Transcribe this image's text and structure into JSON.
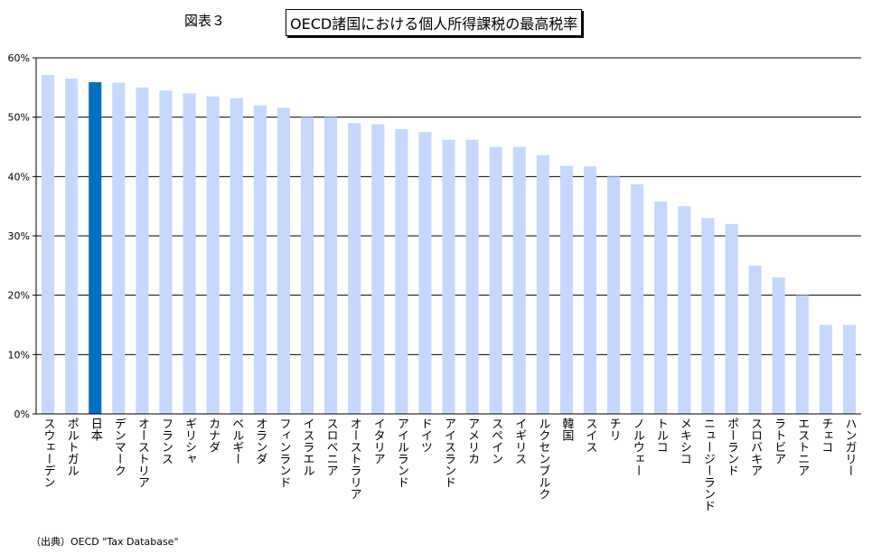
{
  "figure_label": "図表３",
  "source_note": "（出典）OECD \"Tax Database\"",
  "chart_data": {
    "type": "bar",
    "title": "OECD諸国における個人所得課税の最高税率",
    "xlabel": "",
    "ylabel": "",
    "ylim": [
      0,
      60
    ],
    "yticks": [
      "0%",
      "10%",
      "20%",
      "30%",
      "40%",
      "50%",
      "60%"
    ],
    "grid": true,
    "bar_color": "#c6d8ff",
    "highlight_color": "#0070c0",
    "highlight_category": "日本",
    "categories": [
      "スウェーデン",
      "ポルトガル",
      "日本",
      "デンマーク",
      "オーストリア",
      "フランス",
      "ギリシャ",
      "カナダ",
      "ベルギー",
      "オランダ",
      "フィンランド",
      "イスラエル",
      "スロベニア",
      "オーストラリア",
      "イタリア",
      "アイルランド",
      "ドイツ",
      "アイスランド",
      "アメリカ",
      "スペイン",
      "イギリス",
      "ルクセンブルク",
      "韓国",
      "スイス",
      "チリ",
      "ノルウェー",
      "トルコ",
      "メキシコ",
      "ニュージーランド",
      "ポーランド",
      "スロバキア",
      "ラトビア",
      "エストニア",
      "チェコ",
      "ハンガリー"
    ],
    "values": [
      57.1,
      56.5,
      55.9,
      55.8,
      55.0,
      54.5,
      54.0,
      53.5,
      53.2,
      52.0,
      51.6,
      50.0,
      50.0,
      49.0,
      48.8,
      48.0,
      47.5,
      46.2,
      46.2,
      45.0,
      45.0,
      43.6,
      41.8,
      41.7,
      40.0,
      38.7,
      35.8,
      35.0,
      33.0,
      32.0,
      25.0,
      23.0,
      20.0,
      15.0,
      15.0
    ]
  }
}
